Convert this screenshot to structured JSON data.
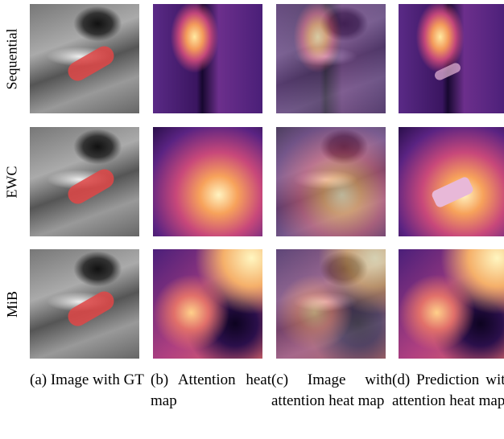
{
  "rows": [
    {
      "label": "Sequential"
    },
    {
      "label": "EWC"
    },
    {
      "label": "MiB"
    }
  ],
  "captions": [
    "(a) Image with GT",
    "(b) Attention heat map",
    "(c) Image with attention heat map",
    "(d) Prediction with attention heat map"
  ]
}
